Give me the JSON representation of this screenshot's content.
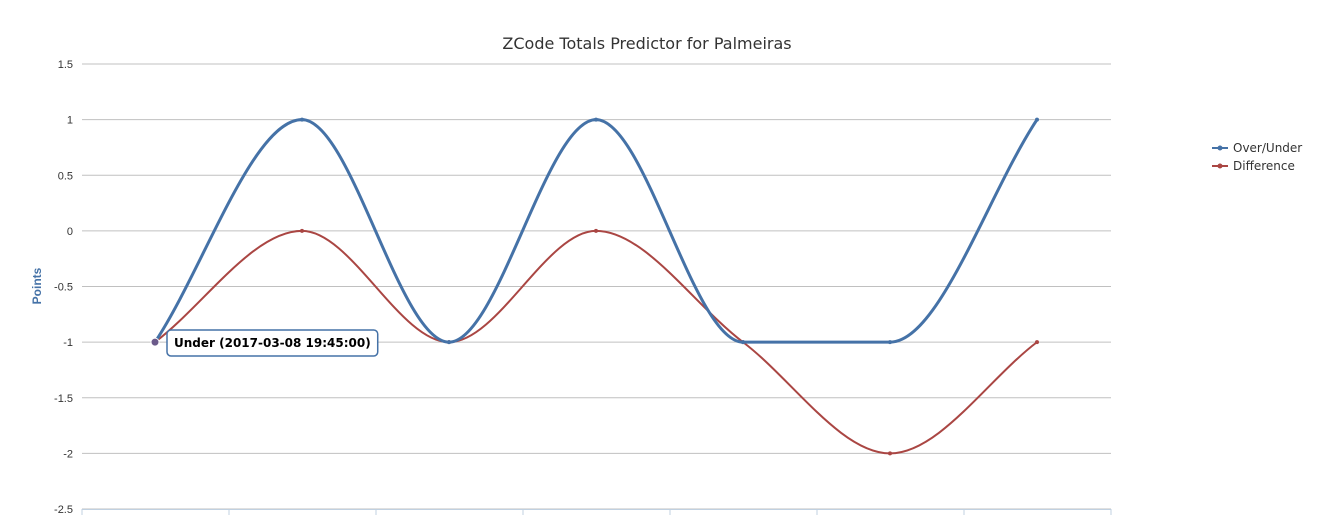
{
  "chart_data": {
    "type": "line",
    "title": "ZCode Totals Predictor for Palmeiras",
    "xlabel": "",
    "ylabel": "Points",
    "ylim": [
      -2.5,
      1.5
    ],
    "yticks": [
      1.5,
      1,
      0.5,
      0,
      -0.5,
      -1,
      -1.5,
      -2,
      -2.5
    ],
    "ytick_labels": [
      "1.5",
      "1",
      "0.5",
      "0",
      "-0.5",
      "-1",
      "-1.5",
      "-2",
      "-2.5"
    ],
    "x": [
      0,
      1,
      2,
      3,
      4,
      5,
      6
    ],
    "grid": true,
    "legend_position": "right",
    "series": [
      {
        "name": "Over/Under",
        "color": "#4572A7",
        "values": [
          -1,
          1,
          -1,
          1,
          -1,
          -1,
          1
        ]
      },
      {
        "name": "Difference",
        "color": "#AA4643",
        "values": [
          -1,
          0,
          -1,
          0,
          -1,
          -2,
          -1
        ]
      }
    ],
    "tooltip": {
      "text": "Under (2017-03-08 19:45:00)",
      "series_index": 0,
      "point_index": 0
    }
  }
}
